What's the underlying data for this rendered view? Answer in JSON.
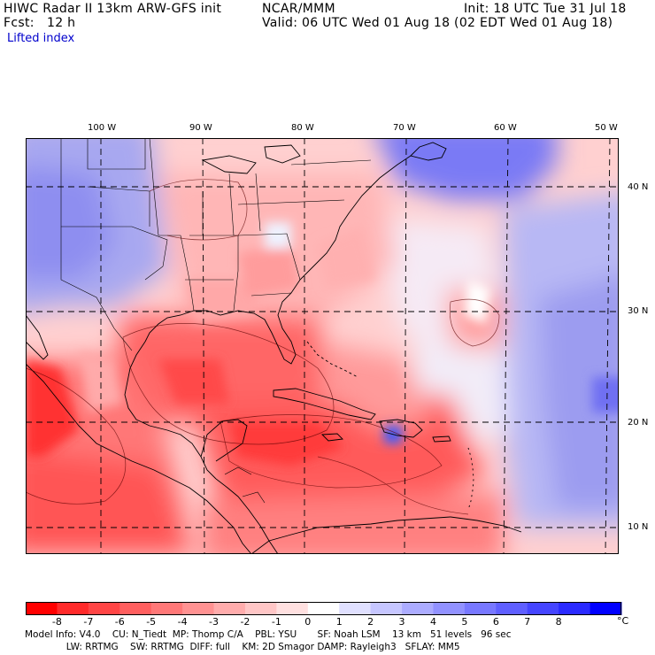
{
  "header": {
    "left_line1": "HIWC Radar II 13km ARW-GFS init",
    "left_line2": "Fcst:   12 h",
    "center": "NCAR/MMM",
    "right_line1": "Init: 18 UTC Tue 31 Jul 18",
    "right_line2": "Valid: 06 UTC Wed 01 Aug 18 (02 EDT Wed 01 Aug 18)",
    "field_name": "Lifted index"
  },
  "map": {
    "longitude_labels": [
      "100 W",
      "90 W",
      "80 W",
      "70 W",
      "60 W",
      "50 W"
    ],
    "latitude_labels": [
      "40 N",
      "30 N",
      "20 N",
      "10 N"
    ]
  },
  "colorbar": {
    "unit": "°C",
    "tick_labels": [
      "-8",
      "-7",
      "-6",
      "-5",
      "-4",
      "-3",
      "-2",
      "-1",
      "0",
      "1",
      "2",
      "3",
      "4",
      "5",
      "6",
      "7",
      "8"
    ],
    "colors": [
      "#ff0000",
      "#ff2a2a",
      "#ff4545",
      "#ff5f5f",
      "#ff7878",
      "#ff9292",
      "#ffacac",
      "#ffc6c6",
      "#ffe0e0",
      "#ffffff",
      "#e0e0ff",
      "#c6c6ff",
      "#acacff",
      "#9292ff",
      "#7878ff",
      "#5f5fff",
      "#4545ff",
      "#2a2aff",
      "#0000ff"
    ]
  },
  "footer": {
    "line1": "Model Info: V4.0    CU: N_Tiedt  MP: Thomp C/A    PBL: YSU       SF: Noah LSM    13 km   51 levels   96 sec",
    "line2": "              LW: RRTMG    SW: RRTMG  DIFF: full    KM: 2D Smagor DAMP: Rayleigh3   SFLAY: MM5"
  }
}
